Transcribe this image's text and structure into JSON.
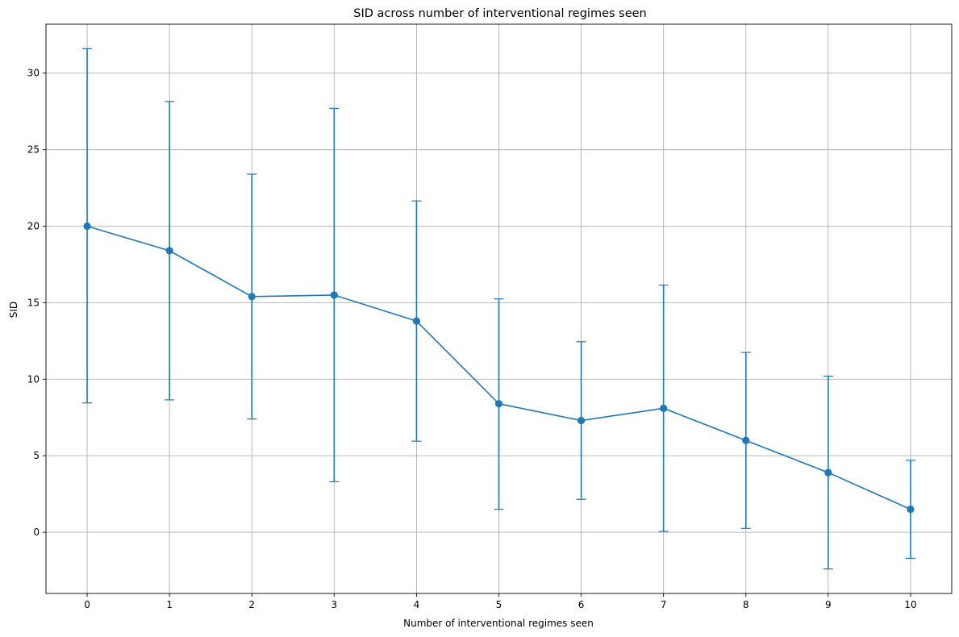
{
  "chart_data": {
    "type": "line",
    "title": "SID across number of interventional regimes seen",
    "xlabel": "Number of interventional regimes seen",
    "ylabel": "SID",
    "x": [
      0,
      1,
      2,
      3,
      4,
      5,
      6,
      7,
      8,
      9,
      10
    ],
    "series": [
      {
        "values": [
          20.0,
          18.4,
          15.4,
          15.5,
          13.8,
          8.4,
          7.3,
          8.1,
          6.0,
          3.9,
          1.5
        ],
        "err_low": [
          8.45,
          8.65,
          7.4,
          3.3,
          5.95,
          1.5,
          2.15,
          0.05,
          0.25,
          -2.4,
          -1.7
        ],
        "err_high": [
          31.6,
          28.15,
          23.4,
          27.7,
          21.65,
          15.25,
          12.45,
          16.15,
          11.75,
          10.2,
          4.7
        ]
      }
    ],
    "xlim": [
      -0.5,
      10.5
    ],
    "ylim": [
      -4.0,
      33.2
    ],
    "x_ticks": [
      "0",
      "1",
      "2",
      "3",
      "4",
      "5",
      "6",
      "7",
      "8",
      "9",
      "10"
    ],
    "y_ticks": [
      "0",
      "5",
      "10",
      "15",
      "20",
      "25",
      "30"
    ],
    "grid": true,
    "color": "#1f77b4",
    "grid_color": "#b0b0b0"
  }
}
